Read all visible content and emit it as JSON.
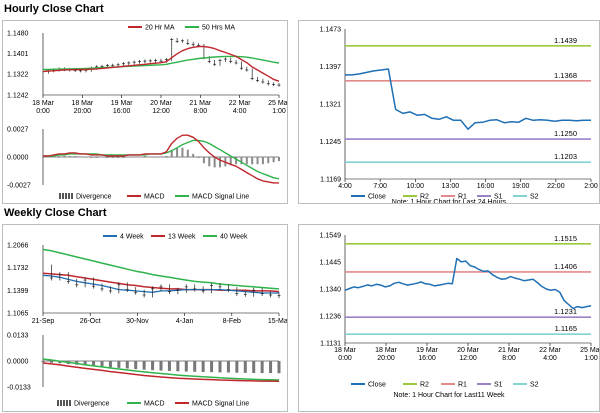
{
  "sections": {
    "hourly_title": "Hourly Close Chart",
    "weekly_title": "Weekly Close Chart"
  },
  "colors": {
    "red": "#c0272d",
    "green": "#2fb34a",
    "blue": "#1f6fb4",
    "black": "#222222",
    "gray": "#808080",
    "r2": "#9bc83c",
    "r1": "#e28a8a",
    "s1": "#9b82c8",
    "s2": "#7fd3d3"
  },
  "chart_data": [
    {
      "id": "hourly-price",
      "type": "line",
      "title": "",
      "legend": [
        "20 Hr MA",
        "50 Hrs MA"
      ],
      "x_ticks": [
        "18 Mar\n0:00",
        "18 Mar\n20:00",
        "19 Mar\n16:00",
        "20 Mar\n12:00",
        "21 Mar\n8:00",
        "22 Mar\n4:00",
        "25 Mar\n1:00"
      ],
      "y_ticks": [
        "1.1480",
        "1.1401",
        "1.1322",
        "1.1242"
      ],
      "ylim": [
        1.1242,
        1.148
      ],
      "series": [
        {
          "name": "Close",
          "values": [
            1.133,
            1.1335,
            1.1338,
            1.1342,
            1.134,
            1.1338,
            1.1336,
            1.1335,
            1.1337,
            1.1345,
            1.135,
            1.1352,
            1.1355,
            1.1356,
            1.1358,
            1.1362,
            1.1365,
            1.1368,
            1.137,
            1.1372,
            1.1373,
            1.1375,
            1.1372,
            1.1378,
            1.1455,
            1.1448,
            1.145,
            1.144,
            1.1435,
            1.1432,
            1.1385,
            1.137,
            1.136,
            1.1375,
            1.138,
            1.137,
            1.1365,
            1.1345,
            1.1338,
            1.1305,
            1.1298,
            1.1292,
            1.1285,
            1.1282,
            1.128
          ]
        },
        {
          "name": "20 Hr MA",
          "values": [
            1.1332,
            1.1334,
            1.1335,
            1.1337,
            1.1338,
            1.1339,
            1.1339,
            1.134,
            1.134,
            1.1341,
            1.1342,
            1.1344,
            1.1346,
            1.1348,
            1.135,
            1.1352,
            1.1354,
            1.1356,
            1.1358,
            1.136,
            1.1362,
            1.1364,
            1.1366,
            1.137,
            1.1385,
            1.14,
            1.1412,
            1.142,
            1.1425,
            1.1428,
            1.1428,
            1.1425,
            1.142,
            1.1412,
            1.1405,
            1.1398,
            1.139,
            1.1378,
            1.1366,
            1.135,
            1.1338,
            1.1326,
            1.1314,
            1.1302,
            1.1295
          ]
        },
        {
          "name": "50 Hrs MA",
          "values": [
            1.134,
            1.134,
            1.1341,
            1.1341,
            1.1342,
            1.1342,
            1.1343,
            1.1343,
            1.1344,
            1.1345,
            1.1346,
            1.1347,
            1.1348,
            1.1349,
            1.135,
            1.1351,
            1.1352,
            1.1353,
            1.1354,
            1.1355,
            1.1356,
            1.1357,
            1.1358,
            1.136,
            1.1364,
            1.1368,
            1.1372,
            1.1376,
            1.1379,
            1.1382,
            1.1384,
            1.1386,
            1.1388,
            1.1389,
            1.139,
            1.139,
            1.139,
            1.1389,
            1.1387,
            1.1384,
            1.138,
            1.1376,
            1.1372,
            1.1368,
            1.1365
          ]
        }
      ]
    },
    {
      "id": "hourly-macd",
      "type": "line",
      "legend": [
        "Divergence",
        "MACD",
        "MACD Signal Line"
      ],
      "y_ticks": [
        "0.0027",
        "0.0000",
        "-0.0027"
      ],
      "ylim": [
        -0.0027,
        0.0027
      ],
      "series": [
        {
          "name": "MACD",
          "values": [
            0.0001,
            0.0001,
            0.0002,
            0.0003,
            0.0003,
            0.0004,
            0.0004,
            0.0003,
            0.0003,
            0.0002,
            0.0002,
            0.0002,
            0.0001,
            0.0001,
            0.0001,
            0.0001,
            0.0002,
            0.0002,
            0.0002,
            0.0003,
            0.0003,
            0.0003,
            0.0003,
            0.0005,
            0.0013,
            0.0018,
            0.0021,
            0.0021,
            0.0019,
            0.0015,
            0.0009,
            0.0004,
            0.0,
            -0.0003,
            -0.0005,
            -0.0007,
            -0.0009,
            -0.0012,
            -0.0015,
            -0.0018,
            -0.0021,
            -0.0023,
            -0.0024,
            -0.0025,
            -0.0025
          ]
        },
        {
          "name": "MACD Signal Line",
          "values": [
            0.0001,
            0.0001,
            0.0001,
            0.0002,
            0.0002,
            0.0003,
            0.0003,
            0.0003,
            0.0003,
            0.0003,
            0.0003,
            0.0002,
            0.0002,
            0.0002,
            0.0002,
            0.0002,
            0.0002,
            0.0002,
            0.0002,
            0.0002,
            0.0003,
            0.0003,
            0.0003,
            0.0004,
            0.0006,
            0.0009,
            0.0012,
            0.0014,
            0.0016,
            0.0016,
            0.0015,
            0.0013,
            0.001,
            0.0007,
            0.0004,
            0.0001,
            -0.0002,
            -0.0005,
            -0.0008,
            -0.0011,
            -0.0014,
            -0.0016,
            -0.0018,
            -0.002,
            -0.0021
          ]
        }
      ]
    },
    {
      "id": "hourly-levels",
      "type": "line",
      "legend": [
        "Close",
        "R2",
        "R1",
        "S1",
        "S2"
      ],
      "note": "Note: 1 Hour Chart for Last 24 Hours",
      "x_ticks": [
        "4:00",
        "7:00",
        "10:00",
        "13:00",
        "16:00",
        "19:00",
        "22:00",
        "2:00"
      ],
      "y_ticks": [
        "1.1473",
        "1.1397",
        "1.1321",
        "1.1245",
        "1.1169"
      ],
      "ylim": [
        1.1169,
        1.1473
      ],
      "levels": [
        {
          "name": "R2",
          "value": 1.1439,
          "label": "1.1439"
        },
        {
          "name": "R1",
          "value": 1.1368,
          "label": "1.1368"
        },
        {
          "name": "S1",
          "value": 1.125,
          "label": "1.1250"
        },
        {
          "name": "S2",
          "value": 1.1203,
          "label": "1.1203"
        }
      ],
      "series": [
        {
          "name": "Close",
          "values": [
            1.138,
            1.138,
            1.1382,
            1.1385,
            1.1388,
            1.139,
            1.1392,
            1.131,
            1.1302,
            1.1305,
            1.1298,
            1.13,
            1.1292,
            1.129,
            1.1295,
            1.1288,
            1.1288,
            1.127,
            1.1283,
            1.1284,
            1.1288,
            1.1289,
            1.1283,
            1.1285,
            1.1284,
            1.1292,
            1.1288,
            1.1289,
            1.1288,
            1.1286,
            1.1288,
            1.1288,
            1.1287,
            1.1288,
            1.1288
          ]
        }
      ]
    },
    {
      "id": "weekly-price",
      "type": "line",
      "legend": [
        "4 Week",
        "13 Week",
        "40 Week"
      ],
      "x_ticks": [
        "21-Sep",
        "26-Oct",
        "30-Nov",
        "4-Jan",
        "8-Feb",
        "15-Mar"
      ],
      "y_ticks": [
        "1.2066",
        "1.1732",
        "1.1399",
        "1.1065"
      ],
      "ylim": [
        1.1065,
        1.2066
      ],
      "series": [
        {
          "name": "Close",
          "values": [
            1.174,
            1.158,
            1.163,
            1.153,
            1.148,
            1.155,
            1.146,
            1.142,
            1.139,
            1.148,
            1.141,
            1.137,
            1.133,
            1.142,
            1.145,
            1.138,
            1.14,
            1.145,
            1.142,
            1.139,
            1.147,
            1.145,
            1.141,
            1.135,
            1.134,
            1.14,
            1.135,
            1.133,
            1.132
          ]
        },
        {
          "name": "4 Week",
          "values": [
            1.162,
            1.161,
            1.159,
            1.156,
            1.153,
            1.151,
            1.149,
            1.147,
            1.144,
            1.141,
            1.14,
            1.139,
            1.138,
            1.137,
            1.139,
            1.139,
            1.14,
            1.141,
            1.141,
            1.141,
            1.141,
            1.141,
            1.14,
            1.139,
            1.138,
            1.137,
            1.136,
            1.136,
            1.136
          ]
        },
        {
          "name": "13 Week",
          "values": [
            1.165,
            1.164,
            1.163,
            1.162,
            1.16,
            1.158,
            1.156,
            1.154,
            1.152,
            1.15,
            1.148,
            1.147,
            1.145,
            1.144,
            1.143,
            1.142,
            1.142,
            1.141,
            1.141,
            1.141,
            1.141,
            1.14,
            1.14,
            1.14,
            1.14,
            1.139,
            1.139,
            1.139,
            1.138
          ]
        },
        {
          "name": "40 Week",
          "values": [
            1.2,
            1.198,
            1.195,
            1.192,
            1.189,
            1.186,
            1.183,
            1.18,
            1.177,
            1.174,
            1.171,
            1.168,
            1.166,
            1.163,
            1.161,
            1.159,
            1.157,
            1.155,
            1.153,
            1.152,
            1.151,
            1.149,
            1.148,
            1.147,
            1.146,
            1.145,
            1.144,
            1.143,
            1.142
          ]
        }
      ]
    },
    {
      "id": "weekly-macd",
      "type": "line",
      "legend": [
        "Divergence",
        "MACD",
        "MACD Signal Line"
      ],
      "y_ticks": [
        "0.0133",
        "0.0000",
        "-0.0133"
      ],
      "ylim": [
        -0.0133,
        0.0133
      ],
      "series": [
        {
          "name": "MACD",
          "values": [
            -0.001,
            -0.0015,
            -0.002,
            -0.0026,
            -0.0032,
            -0.0038,
            -0.0043,
            -0.0048,
            -0.0054,
            -0.0059,
            -0.0064,
            -0.0069,
            -0.0074,
            -0.0078,
            -0.0082,
            -0.0085,
            -0.0088,
            -0.009,
            -0.0092,
            -0.0094,
            -0.0095,
            -0.0097,
            -0.0098,
            -0.01,
            -0.0101,
            -0.0102,
            -0.0103,
            -0.0103,
            -0.0104
          ]
        },
        {
          "name": "MACD Signal Line",
          "values": [
            0.001,
            0.0005,
            -0.0001,
            -0.0007,
            -0.0013,
            -0.0019,
            -0.0025,
            -0.003,
            -0.0036,
            -0.0041,
            -0.0046,
            -0.0051,
            -0.0056,
            -0.006,
            -0.0064,
            -0.0068,
            -0.0072,
            -0.0075,
            -0.0078,
            -0.0081,
            -0.0083,
            -0.0086,
            -0.0088,
            -0.009,
            -0.0092,
            -0.0094,
            -0.0095,
            -0.0096,
            -0.0097
          ]
        }
      ]
    },
    {
      "id": "weekly-levels",
      "type": "line",
      "legend": [
        "Close",
        "R2",
        "R1",
        "S1",
        "S2"
      ],
      "note": "Note: 1 Hour Chart for Last11 Week",
      "x_ticks": [
        "18 Mar\n0:00",
        "18 Mar\n20:00",
        "19 Mar\n16:00",
        "20 Mar\n12:00",
        "21 Mar\n8:00",
        "22 Mar\n4:00",
        "25 Mar\n1:00"
      ],
      "y_ticks": [
        "1.1549",
        "1.1445",
        "1.1340",
        "1.1236",
        "1.1131"
      ],
      "ylim": [
        1.1131,
        1.1549
      ],
      "levels": [
        {
          "name": "R2",
          "value": 1.1515,
          "label": "1.1515"
        },
        {
          "name": "R1",
          "value": 1.1406,
          "label": "1.1406"
        },
        {
          "name": "S1",
          "value": 1.1231,
          "label": "1.1231"
        },
        {
          "name": "S2",
          "value": 1.1165,
          "label": "1.1165"
        }
      ],
      "series": [
        {
          "name": "Close",
          "values": [
            1.1335,
            1.1342,
            1.1348,
            1.1345,
            1.135,
            1.1356,
            1.1352,
            1.1358,
            1.1355,
            1.1348,
            1.1352,
            1.1362,
            1.1366,
            1.136,
            1.1355,
            1.1358,
            1.1362,
            1.1367,
            1.136,
            1.1358,
            1.1352,
            1.1355,
            1.1358,
            1.1362,
            1.136,
            1.1458,
            1.1445,
            1.1448,
            1.143,
            1.1425,
            1.1415,
            1.1408,
            1.141,
            1.1395,
            1.1385,
            1.1378,
            1.138,
            1.1388,
            1.1382,
            1.1378,
            1.1372,
            1.1375,
            1.1378,
            1.1365,
            1.135,
            1.134,
            1.1335,
            1.1338,
            1.1328,
            1.1295,
            1.128,
            1.1265,
            1.1272,
            1.1268,
            1.1272,
            1.1275
          ]
        }
      ]
    }
  ]
}
